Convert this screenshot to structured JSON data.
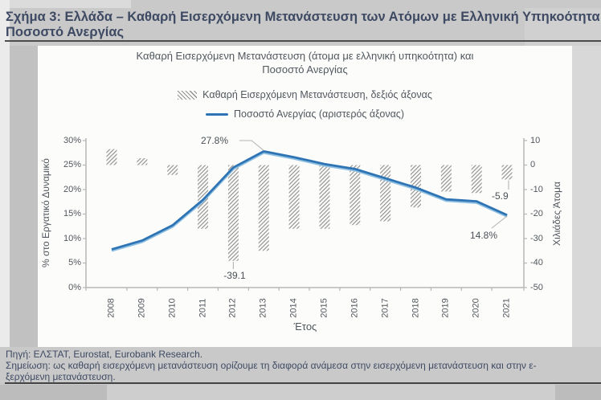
{
  "page": {
    "title_line1": "Σχήμα 3: Ελλάδα – Καθαρή Εισερχόμενη Μετανάστευση των Ατόμων με Ελληνική Υπηκοότητα και",
    "title_line2": "Ποσοστό Ανεργίας",
    "source": "Πηγή: ΕΛΣΤΑΤ, Eurostat, Eurobank Research.",
    "note_line1": "Σημείωση: ως καθαρή εισερχόμενη μετανάστευση ορίζουμε τη διαφορά ανάμεσα στην εισερχόμενη μετανάστευση και στην ε-",
    "note_line2": "ξερχόμενη μετανάστευση."
  },
  "chart": {
    "title_line1": "Καθαρή Εισερχόμενη Μετανάστευση (άτομα με ελληνική υπηκοότητα) και",
    "title_line2": "Ποσοστό Ανεργίας"
  },
  "chart_data": {
    "type": "bar+line",
    "categories": [
      "2008",
      "2009",
      "2010",
      "2011",
      "2012",
      "2013",
      "2014",
      "2015",
      "2016",
      "2017",
      "2018",
      "2019",
      "2020",
      "2021"
    ],
    "series": [
      {
        "name": "Καθαρή Εισερχόμενη Μετανάστευση, δεξιός άξονας",
        "type": "bar",
        "axis": "right",
        "unit": "χιλιάδες άτομα",
        "values": [
          6.5,
          2.8,
          -4.0,
          -26.0,
          -39.1,
          -35.0,
          -26.0,
          -26.0,
          -24.5,
          -23.0,
          -17.3,
          -10.8,
          -11.4,
          -5.9
        ]
      },
      {
        "name": "Ποσοστό Ανεργίας (αριστερός άξονας)",
        "type": "line",
        "axis": "left",
        "unit": "% στο εργατικό δυναμικό",
        "values": [
          7.8,
          9.6,
          12.7,
          17.9,
          24.5,
          27.8,
          26.6,
          25.2,
          24.2,
          22.3,
          20.4,
          18.0,
          17.6,
          14.8
        ]
      }
    ],
    "left_axis": {
      "title": "% στο Εργατικό Δυναμικό",
      "range": [
        0,
        30
      ],
      "ticks": [
        {
          "value": 30,
          "label": "30%"
        },
        {
          "value": 25,
          "label": "25%"
        },
        {
          "value": 20,
          "label": "20%"
        },
        {
          "value": 15,
          "label": "15%"
        },
        {
          "value": 10,
          "label": "10%"
        },
        {
          "value": 5,
          "label": "5%"
        },
        {
          "value": 0,
          "label": "0%"
        }
      ]
    },
    "right_axis": {
      "title": "Χιλιάδες Άτομα",
      "range": [
        -50,
        10
      ],
      "ticks": [
        {
          "value": 10,
          "label": "10"
        },
        {
          "value": 0,
          "label": "0"
        },
        {
          "value": -10,
          "label": "-10"
        },
        {
          "value": -20,
          "label": "-20"
        },
        {
          "value": -30,
          "label": "-30"
        },
        {
          "value": -40,
          "label": "-40"
        },
        {
          "value": -50,
          "label": "-50"
        }
      ]
    },
    "x_axis": {
      "title": "Έτος"
    },
    "annotations": [
      {
        "id": "line-2013-peak",
        "text": "27.8%"
      },
      {
        "id": "bar-2012-low",
        "text": "-39.1"
      },
      {
        "id": "bar-2021",
        "text": "-5.9"
      },
      {
        "id": "line-2021",
        "text": "14.8%"
      }
    ],
    "legend_position": "top-center",
    "grid": false,
    "colors": {
      "line": "#2e74b4",
      "line_shadow": "#8fc0e2",
      "hatch": "#8f8f8f",
      "axis": "#b6b6b6",
      "callout": "#b3b3b3",
      "chart_text": "#52575e",
      "title_text": "#3e4a63"
    }
  }
}
